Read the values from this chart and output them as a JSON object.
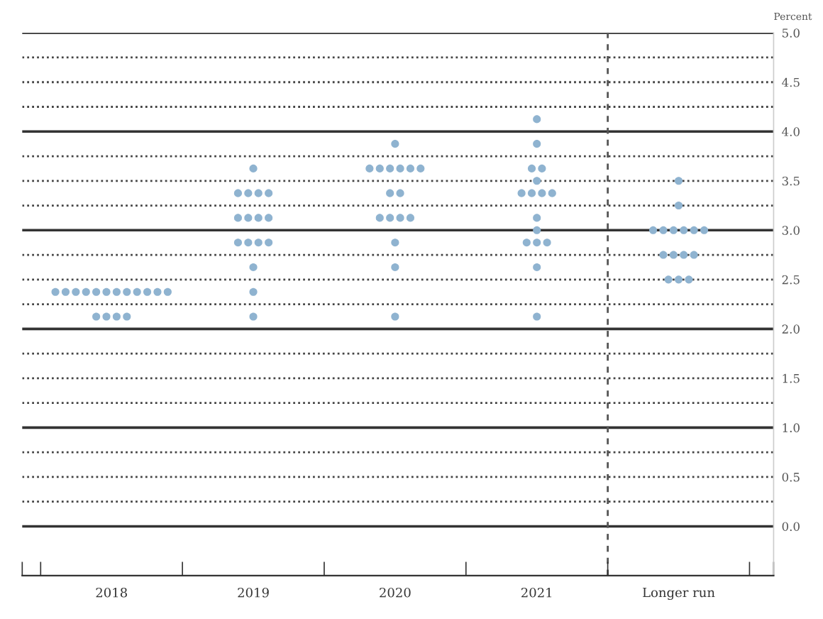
{
  "chart_data": {
    "type": "scatter",
    "ylabel": "Percent",
    "categories": [
      "2018",
      "2019",
      "2020",
      "2021",
      "Longer run"
    ],
    "ylim": [
      -0.5,
      5.0
    ],
    "yticks": [
      {
        "value": 0,
        "label": "0.0"
      },
      {
        "value": 0.25,
        "label": null
      },
      {
        "value": 0.5,
        "label": "0.5"
      },
      {
        "value": 0.75,
        "label": null
      },
      {
        "value": 1,
        "label": "1.0"
      },
      {
        "value": 1.25,
        "label": null
      },
      {
        "value": 1.5,
        "label": "1.5"
      },
      {
        "value": 1.75,
        "label": null
      },
      {
        "value": 2,
        "label": "2.0"
      },
      {
        "value": 2.25,
        "label": null
      },
      {
        "value": 2.5,
        "label": "2.5"
      },
      {
        "value": 2.75,
        "label": null
      },
      {
        "value": 3,
        "label": "3.0"
      },
      {
        "value": 3.25,
        "label": null
      },
      {
        "value": 3.5,
        "label": "3.5"
      },
      {
        "value": 3.75,
        "label": null
      },
      {
        "value": 4,
        "label": "4.0"
      },
      {
        "value": 4.25,
        "label": null
      },
      {
        "value": 4.5,
        "label": "4.5"
      },
      {
        "value": 4.75,
        "label": null
      },
      {
        "value": 5,
        "label": "5.0"
      }
    ],
    "grid": "y",
    "marker": "circle",
    "series": [
      {
        "color": "#8fb3d0",
        "values": [
          2.125,
          2.125,
          2.125,
          2.125,
          2.5
        ]
      },
      {
        "color": "#8fb3d0",
        "values": [
          2.125,
          2.375,
          2.625,
          2.625,
          2.5
        ]
      },
      {
        "color": "#8fb3d0",
        "values": [
          2.125,
          2.625,
          2.875,
          2.875,
          2.5
        ]
      },
      {
        "color": "#8fb3d0",
        "values": [
          2.125,
          2.875,
          3.125,
          2.875,
          2.75
        ]
      },
      {
        "color": "#8fb3d0",
        "values": [
          2.375,
          2.875,
          3.125,
          2.875,
          2.75
        ]
      },
      {
        "color": "#8fb3d0",
        "values": [
          2.375,
          2.875,
          3.125,
          3.0,
          2.75
        ]
      },
      {
        "color": "#8fb3d0",
        "values": [
          2.375,
          2.875,
          3.125,
          3.125,
          2.75
        ]
      },
      {
        "color": "#8fb3d0",
        "values": [
          2.375,
          3.125,
          3.375,
          3.375,
          3.0
        ]
      },
      {
        "color": "#8fb3d0",
        "values": [
          2.375,
          3.125,
          3.375,
          3.375,
          3.0
        ]
      },
      {
        "color": "#8fb3d0",
        "values": [
          2.375,
          3.125,
          3.625,
          3.375,
          3.0
        ]
      },
      {
        "color": "#8fb3d0",
        "values": [
          2.375,
          3.125,
          3.625,
          3.375,
          3.0
        ]
      },
      {
        "color": "#8fb3d0",
        "values": [
          2.375,
          3.375,
          3.625,
          3.5,
          3.0
        ]
      },
      {
        "color": "#8fb3d0",
        "values": [
          2.375,
          3.375,
          3.625,
          3.625,
          3.0
        ]
      },
      {
        "color": "#8fb3d0",
        "values": [
          2.375,
          3.375,
          3.625,
          3.625,
          3.25
        ]
      },
      {
        "color": "#8fb3d0",
        "values": [
          2.375,
          3.375,
          3.625,
          3.875,
          3.5
        ]
      },
      {
        "color": "#8fb3d0",
        "values": [
          2.375,
          3.625,
          3.875,
          4.125,
          null
        ]
      }
    ]
  }
}
